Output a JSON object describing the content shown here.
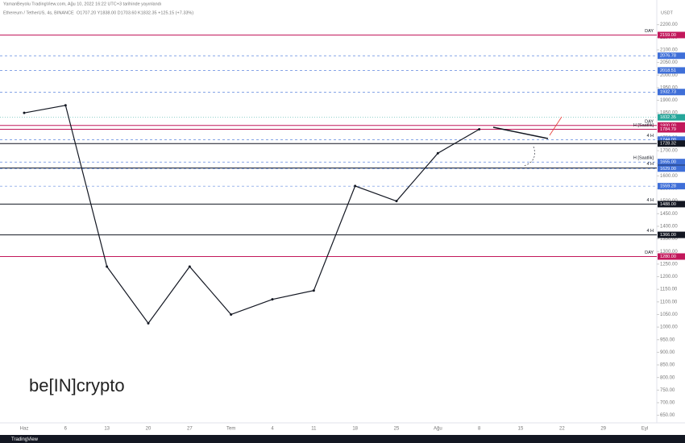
{
  "chart_data": {
    "type": "line",
    "header": "YamanBeyolu TradingView.com, Ağu 10, 2022 16:22 UTC+3 tarihinde yayınlandı",
    "title": "Ethereum / TetherUS, 4s, BINANCE",
    "ohlc": "O1707.20 Y1838.00 D1703.60 K1832.35 +125.15 (+7.33%)",
    "y_unit": "USDT",
    "watermark": "be[IN]crypto",
    "footer": "TradingView",
    "categories": [
      "Haz",
      "6",
      "13",
      "20",
      "27",
      "Tem",
      "4",
      "11",
      "18",
      "25",
      "Ağu",
      "8",
      "15",
      "22",
      "29",
      "Eyl"
    ],
    "series": [
      {
        "name": "ETH/USDT",
        "color": "#131722",
        "values": [
          1850,
          1880,
          1240,
          1015,
          1240,
          1050,
          1110,
          1145,
          1560,
          1500,
          1690,
          1785,
          null,
          null,
          null,
          null
        ]
      }
    ],
    "current_price": {
      "value": 1832.35,
      "label": "1832.35",
      "color": "#26a69a"
    },
    "levels": [
      {
        "value": 2159,
        "label": "2159.00",
        "color": "#c2185b",
        "style": "solid",
        "tag": "DAY"
      },
      {
        "value": 2076.78,
        "label": "2076.78",
        "color": "#3f6fd8",
        "style": "dashed"
      },
      {
        "value": 2018.51,
        "label": "2018.51",
        "color": "#3f6fd8",
        "style": "dashed"
      },
      {
        "value": 1932.73,
        "label": "1932.73",
        "color": "#3f6fd8",
        "style": "dashed"
      },
      {
        "value": 1800,
        "label": "1800.00",
        "color": "#c2185b",
        "style": "solid",
        "tag": "DAY"
      },
      {
        "value": 1784.79,
        "label": "1784.79",
        "color": "#c2185b",
        "style": "solid",
        "tag": "H [Saatlik]"
      },
      {
        "value": 1744,
        "label": "1744.00",
        "color": "#3f6fd8",
        "style": "dashed",
        "tag": "4 H"
      },
      {
        "value": 1728.32,
        "label": "1728.32",
        "color": "#131722",
        "style": "solid"
      },
      {
        "value": 1655,
        "label": "1655.00",
        "color": "#3f6fd8",
        "style": "dashed",
        "tag": "H [Saatlik]"
      },
      {
        "value": 1631,
        "label": "1631.00",
        "color": "#131722",
        "style": "solid",
        "tag": "4 H"
      },
      {
        "value": 1629,
        "label": "1629.00",
        "color": "#3f6fd8",
        "style": "dashed"
      },
      {
        "value": 1559.28,
        "label": "1559.28",
        "color": "#3f6fd8",
        "style": "dashed"
      },
      {
        "value": 1488,
        "label": "1488.00",
        "color": "#131722",
        "style": "solid",
        "tag": "4 H"
      },
      {
        "value": 1366,
        "label": "1366.00",
        "color": "#131722",
        "style": "solid",
        "tag": "4 H"
      },
      {
        "value": 1280,
        "label": "1280.00",
        "color": "#c2185b",
        "style": "solid",
        "tag": "DAY"
      }
    ],
    "ylim": [
      620,
      2250
    ],
    "yticks": [
      {
        "value": 650,
        "label": "650.00"
      },
      {
        "value": 700,
        "label": "700.00"
      },
      {
        "value": 750,
        "label": "750.00"
      },
      {
        "value": 800,
        "label": "800.00"
      },
      {
        "value": 850,
        "label": "850.00"
      },
      {
        "value": 900,
        "label": "900.00"
      },
      {
        "value": 950,
        "label": "950.00"
      },
      {
        "value": 1000,
        "label": "1000.00"
      },
      {
        "value": 1050,
        "label": "1050.00"
      },
      {
        "value": 1100,
        "label": "1100.00"
      },
      {
        "value": 1150,
        "label": "1150.00"
      },
      {
        "value": 1200,
        "label": "1200.00"
      },
      {
        "value": 1250,
        "label": "1250.00"
      },
      {
        "value": 1300,
        "label": "1300.00"
      },
      {
        "value": 1350,
        "label": "1350.00"
      },
      {
        "value": 1400,
        "label": "1400.00"
      },
      {
        "value": 1450,
        "label": "1450.00"
      },
      {
        "value": 1500,
        "label": "1500.00"
      },
      {
        "value": 1550,
        "label": "1550.00"
      },
      {
        "value": 1600,
        "label": "1600.00"
      },
      {
        "value": 1650,
        "label": "1650.00"
      },
      {
        "value": 1700,
        "label": "1700.00"
      },
      {
        "value": 1750,
        "label": "1750.00"
      },
      {
        "value": 1850,
        "label": "1850.00"
      },
      {
        "value": 1900,
        "label": "1900.00"
      },
      {
        "value": 1950,
        "label": "1950.00"
      },
      {
        "value": 2000,
        "label": "2000.00"
      },
      {
        "value": 2050,
        "label": "2050.00"
      },
      {
        "value": 2100,
        "label": "2100.00"
      },
      {
        "value": 2150,
        "label": "2150.00"
      },
      {
        "value": 2200,
        "label": "2200.00"
      }
    ]
  }
}
